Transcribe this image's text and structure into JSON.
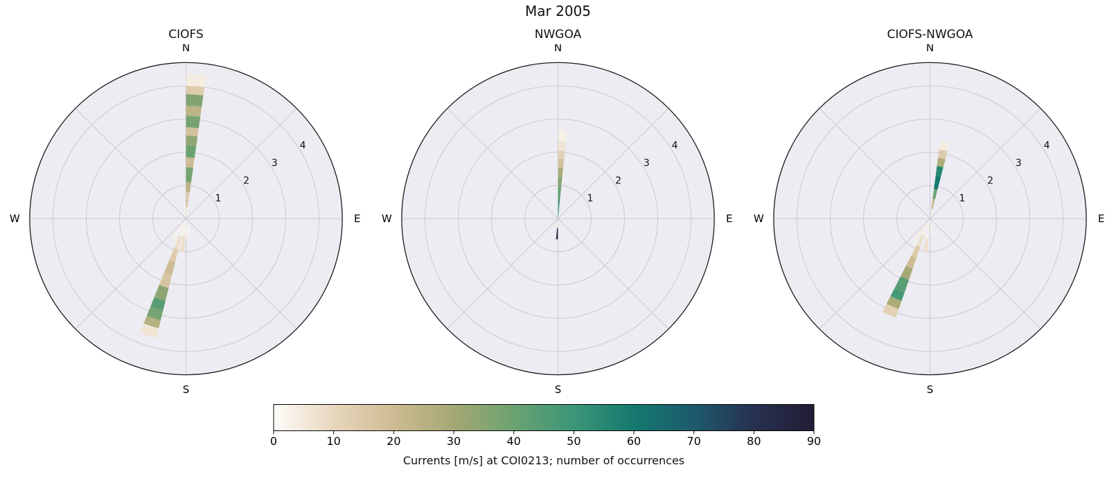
{
  "title": "Mar 2005",
  "chart_data": {
    "type": "polar_windrose",
    "direction_labels": [
      "N",
      "E",
      "S",
      "W"
    ],
    "radial_ticks": [
      1,
      2,
      3,
      4
    ],
    "rmax": 4.7,
    "colors": {
      "axes_bg": "#ececf2",
      "grid": "#c9c9cf",
      "rim": "#1b1b1b",
      "tick_text": "#111111"
    },
    "roses": [
      {
        "title": "CIOFS",
        "wedges": [
          {
            "dir": 4,
            "width": 8,
            "segments": [
              [
                0,
                0.35,
                3
              ],
              [
                0.35,
                0.8,
                14
              ],
              [
                0.8,
                1.1,
                24
              ],
              [
                1.1,
                1.55,
                38
              ],
              [
                1.55,
                1.85,
                20
              ],
              [
                1.85,
                2.2,
                40
              ],
              [
                2.2,
                2.5,
                34
              ],
              [
                2.5,
                2.75,
                18
              ],
              [
                2.75,
                3.1,
                38
              ],
              [
                3.1,
                3.4,
                24
              ],
              [
                3.4,
                3.75,
                36
              ],
              [
                3.75,
                4.0,
                14
              ],
              [
                4.0,
                4.35,
                4
              ]
            ]
          },
          {
            "dir": 198,
            "width": 8,
            "segments": [
              [
                0,
                0.55,
                3
              ],
              [
                0.55,
                0.95,
                8
              ],
              [
                0.95,
                1.35,
                14
              ],
              [
                1.35,
                1.75,
                20
              ],
              [
                1.75,
                2.15,
                17
              ],
              [
                2.15,
                2.55,
                34
              ],
              [
                2.55,
                2.85,
                44
              ],
              [
                2.85,
                3.15,
                38
              ],
              [
                3.15,
                3.4,
                26
              ],
              [
                3.4,
                3.7,
                6
              ]
            ]
          },
          {
            "dir": 187,
            "width": 8,
            "segments": [
              [
                0,
                0.5,
                2
              ],
              [
                0.5,
                1.0,
                8
              ]
            ]
          },
          {
            "dir": 212,
            "width": 8,
            "segments": [
              [
                0,
                0.7,
                3
              ]
            ]
          },
          {
            "dir": 177,
            "width": 7,
            "segments": [
              [
                0,
                0.6,
                2
              ]
            ]
          },
          {
            "dir": 352,
            "width": 7,
            "segments": [
              [
                0,
                0.5,
                2
              ]
            ]
          },
          {
            "dir": 167,
            "width": 6,
            "segments": [
              [
                0,
                0.45,
                2
              ]
            ]
          }
        ]
      },
      {
        "title": "NWGOA",
        "wedges": [
          {
            "dir": 3,
            "width": 5.5,
            "segments": [
              [
                0,
                0.3,
                55
              ],
              [
                0.3,
                0.6,
                48
              ],
              [
                0.6,
                0.95,
                42
              ],
              [
                0.95,
                1.25,
                36
              ],
              [
                1.25,
                1.55,
                28
              ],
              [
                1.55,
                1.8,
                18
              ],
              [
                1.8,
                2.05,
                12
              ],
              [
                2.05,
                2.35,
                6
              ],
              [
                2.35,
                2.65,
                3
              ]
            ]
          },
          {
            "dir": 183,
            "width": 5,
            "segments": [
              [
                0,
                0.28,
                5
              ],
              [
                0.28,
                0.62,
                85
              ]
            ]
          },
          {
            "dir": 175,
            "width": 5,
            "segments": [
              [
                0,
                0.3,
                3
              ]
            ]
          }
        ]
      },
      {
        "title": "CIOFS-NWGOA",
        "wedges": [
          {
            "dir": 11,
            "width": 7,
            "segments": [
              [
                0,
                0.3,
                6
              ],
              [
                0.3,
                0.6,
                22
              ],
              [
                0.6,
                0.9,
                40
              ],
              [
                0.9,
                1.3,
                60
              ],
              [
                1.3,
                1.6,
                55
              ],
              [
                1.6,
                1.85,
                28
              ],
              [
                1.85,
                2.1,
                14
              ],
              [
                2.1,
                2.35,
                4
              ]
            ]
          },
          {
            "dir": 203,
            "width": 8,
            "segments": [
              [
                0,
                0.55,
                3
              ],
              [
                0.55,
                0.9,
                8
              ],
              [
                0.9,
                1.25,
                14
              ],
              [
                1.25,
                1.6,
                20
              ],
              [
                1.6,
                1.95,
                30
              ],
              [
                1.95,
                2.35,
                44
              ],
              [
                2.35,
                2.62,
                48
              ],
              [
                2.62,
                2.88,
                28
              ],
              [
                2.88,
                3.15,
                12
              ]
            ]
          },
          {
            "dir": 188,
            "width": 7,
            "segments": [
              [
                0,
                0.6,
                3
              ],
              [
                0.6,
                1.0,
                7
              ]
            ]
          },
          {
            "dir": 215,
            "width": 7,
            "segments": [
              [
                0,
                0.8,
                4
              ]
            ]
          },
          {
            "dir": 172,
            "width": 6,
            "segments": [
              [
                0,
                0.5,
                2
              ]
            ]
          }
        ]
      }
    ],
    "colorbar": {
      "label": "Currents [m/s] at COI0213; number of occurrences",
      "min": 0,
      "max": 90,
      "ticks": [
        0,
        10,
        20,
        30,
        40,
        50,
        60,
        70,
        80,
        90
      ],
      "stops": [
        {
          "value": 0,
          "color": "#fdfcfa"
        },
        {
          "value": 10,
          "color": "#e8d6bd"
        },
        {
          "value": 20,
          "color": "#cdbc93"
        },
        {
          "value": 30,
          "color": "#a4a873"
        },
        {
          "value": 40,
          "color": "#6ba271"
        },
        {
          "value": 50,
          "color": "#3c9678"
        },
        {
          "value": 60,
          "color": "#15796e"
        },
        {
          "value": 70,
          "color": "#1d5a6d"
        },
        {
          "value": 80,
          "color": "#27314f"
        },
        {
          "value": 90,
          "color": "#211c35"
        }
      ]
    }
  }
}
